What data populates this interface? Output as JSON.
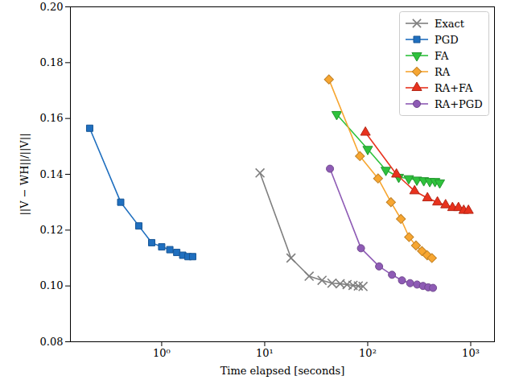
{
  "chart_data": {
    "type": "line",
    "xlabel": "Time elapsed [seconds]",
    "ylabel": "||V − WH||/||V||",
    "log": "x",
    "grid": false,
    "legend": "upper right",
    "xlim": [
      0.13,
      1700
    ],
    "xticks": [
      {
        "value": 1,
        "label": "10⁰"
      },
      {
        "value": 10,
        "label": "10¹"
      },
      {
        "value": 100,
        "label": "10²"
      },
      {
        "value": 1000,
        "label": "10³"
      }
    ],
    "ylim": [
      0.08,
      0.2
    ],
    "yticks": [
      0.08,
      {
        "value": 0.1,
        "label": "0.10"
      },
      0.12,
      0.14,
      0.16,
      0.18,
      {
        "value": 0.2,
        "label": "0.20"
      }
    ],
    "series": [
      {
        "name": "Exact",
        "color": "#7f7f7f",
        "marker": "x",
        "x": [
          9,
          18,
          27,
          36,
          45,
          54,
          63,
          72,
          81,
          90
        ],
        "values": [
          0.1405,
          0.11,
          0.1035,
          0.102,
          0.101,
          0.1008,
          0.1005,
          0.1002,
          0.1,
          0.0998
        ]
      },
      {
        "name": "PGD",
        "color": "#1f6fbf",
        "marker": "square",
        "x": [
          0.2,
          0.4,
          0.6,
          0.8,
          1.0,
          1.2,
          1.4,
          1.6,
          1.8,
          2.0
        ],
        "values": [
          0.1565,
          0.13,
          0.1215,
          0.1155,
          0.114,
          0.113,
          0.112,
          0.111,
          0.1105,
          0.1105
        ]
      },
      {
        "name": "FA",
        "color": "#2ec23c",
        "marker": "triangle_down",
        "x": [
          50,
          100,
          150,
          200,
          250,
          300,
          350,
          400,
          450,
          500
        ],
        "values": [
          0.1615,
          0.149,
          0.1415,
          0.139,
          0.1385,
          0.138,
          0.1378,
          0.1375,
          0.1375,
          0.137
        ]
      },
      {
        "name": "RA",
        "color": "#f7a631",
        "marker": "diamond",
        "x": [
          42,
          84,
          126,
          168,
          210,
          252,
          294,
          336,
          378,
          420
        ],
        "values": [
          0.174,
          0.1465,
          0.1385,
          0.13,
          0.124,
          0.1175,
          0.1145,
          0.1125,
          0.111,
          0.11
        ]
      },
      {
        "name": "RA+FA",
        "color": "#e8321e",
        "marker": "triangle_up",
        "x": [
          95,
          190,
          285,
          380,
          475,
          570,
          665,
          760,
          855,
          950
        ],
        "values": [
          0.155,
          0.14,
          0.134,
          0.1315,
          0.13,
          0.129,
          0.128,
          0.128,
          0.127,
          0.127
        ]
      },
      {
        "name": "RA+PGD",
        "color": "#8e5bb5",
        "marker": "circle",
        "x": [
          43,
          86,
          129,
          172,
          215,
          258,
          301,
          344,
          387,
          430
        ],
        "values": [
          0.142,
          0.1135,
          0.107,
          0.104,
          0.102,
          0.101,
          0.1005,
          0.1,
          0.0995,
          0.0993
        ]
      }
    ]
  }
}
